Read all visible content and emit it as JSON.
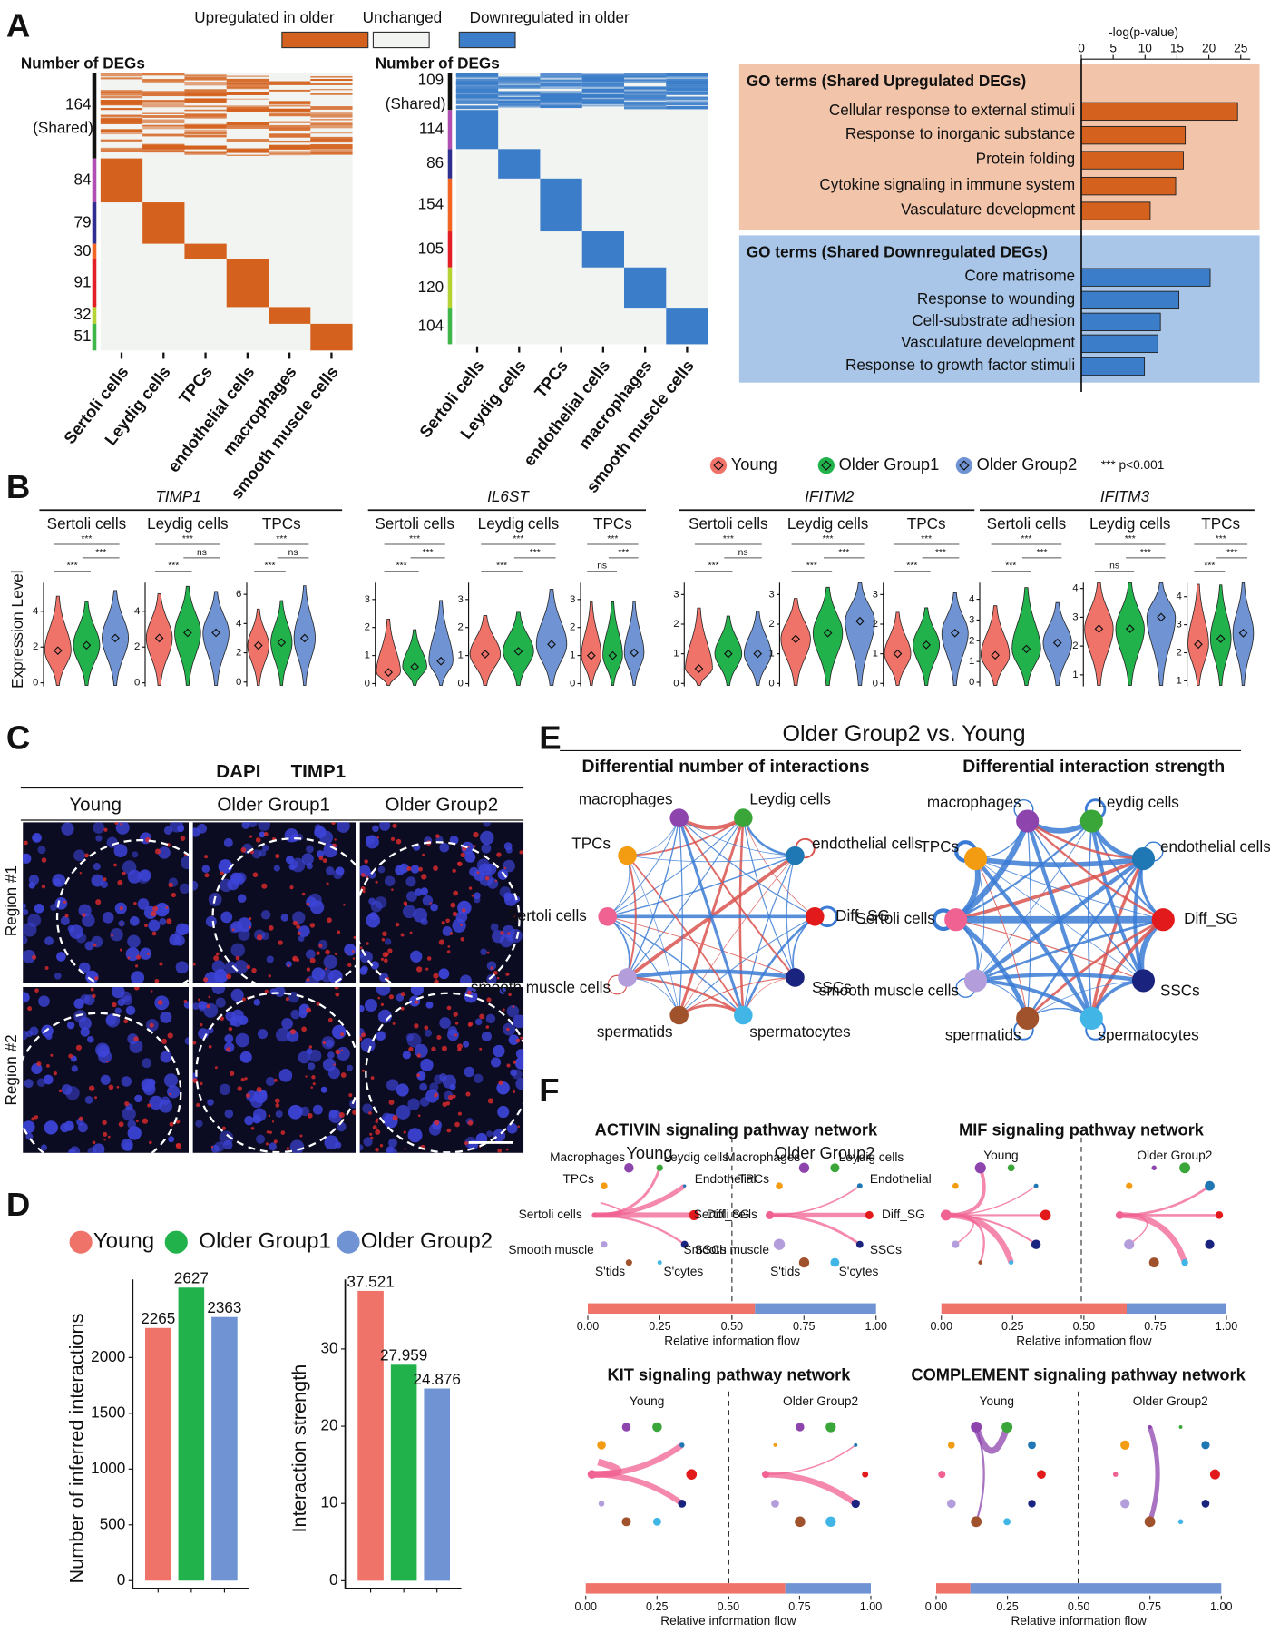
{
  "panel_letters": [
    "A",
    "B",
    "C",
    "D",
    "E",
    "F"
  ],
  "heatmap_legend": [
    {
      "label": "Upregulated in older",
      "color": "#d4621e"
    },
    {
      "label": "Unchanged",
      "color": "#f2f4f2"
    },
    {
      "label": "Downregulated in older",
      "color": "#3b7dc9"
    }
  ],
  "panel_c": {
    "stains": [
      {
        "text": "DAPI",
        "color": "#2e3192"
      },
      {
        "text": "TIMP1",
        "color": "#e0245e"
      }
    ],
    "columns": [
      "Young",
      "Older Group1",
      "Older Group2"
    ],
    "rows": [
      "Region #1",
      "Region #2"
    ]
  },
  "chart_data": [
    {
      "type": "heatmap",
      "title": "Number of DEGs",
      "color": "#d4621e",
      "row_counts": [
        164,
        84,
        79,
        30,
        91,
        32,
        51
      ],
      "shared_label": "(Shared)",
      "group_colors": [
        "#111111",
        "#b04fb1",
        "#2e2f8e",
        "#f26522",
        "#e21f26",
        "#b6d334",
        "#3fb64a"
      ],
      "categories": [
        "Sertoli cells",
        "Leydig cells",
        "TPCs",
        "endothelial cells",
        "macrophages",
        "smooth muscle cells"
      ],
      "category_colors": [
        "#b04fb1",
        "#2e2f8e",
        "#f26522",
        "#e21f26",
        "#b6d334",
        "#3fb64a"
      ]
    },
    {
      "type": "heatmap",
      "title": "Number of DEGs",
      "color": "#3b7dc9",
      "row_counts": [
        109,
        114,
        86,
        154,
        105,
        120,
        104
      ],
      "shared_label": "(Shared)",
      "group_colors": [
        "#111111",
        "#b04fb1",
        "#2e2f8e",
        "#f26522",
        "#e21f26",
        "#b6d334",
        "#3fb64a"
      ],
      "categories": [
        "Sertoli cells",
        "Leydig cells",
        "TPCs",
        "endothelial cells",
        "macrophages",
        "smooth muscle cells"
      ],
      "category_colors": [
        "#b04fb1",
        "#2e2f8e",
        "#f26522",
        "#e21f26",
        "#b6d334",
        "#3fb64a"
      ]
    },
    {
      "type": "barh",
      "axis_title": "-log(p-value)",
      "xlim": [
        0,
        26.5
      ],
      "xticks": [
        0,
        5,
        10,
        15,
        20,
        25
      ],
      "groups": [
        {
          "title": "GO terms (Shared Upregulated DEGs)",
          "color": "#d4621e",
          "background": "#f2c4aa",
          "categories": [
            "Cellular response to external stimuli",
            "Response to inorganic substance",
            "Protein folding",
            "Cytokine signaling in immune system",
            "Vasculature development"
          ],
          "values": [
            24.5,
            16.3,
            16,
            14.8,
            10.8
          ]
        },
        {
          "title": "GO terms (Shared Downregulated DEGs)",
          "color": "#3b7dc9",
          "background": "#a9c6e8",
          "categories": [
            "Core matrisome",
            "Response to wounding",
            "Cell-substrate adhesion",
            "Vasculature development",
            "Response to growth factor stimuli"
          ],
          "values": [
            20.2,
            15.3,
            12.4,
            12,
            9.9
          ]
        }
      ]
    },
    {
      "type": "violin",
      "ylabel": "Expression Level",
      "note": "*** p<0.001",
      "series": [
        {
          "name": "Young",
          "color": "#f0736a"
        },
        {
          "name": "Older Group1",
          "color": "#22b24c"
        },
        {
          "name": "Older Group2",
          "color": "#6f93d3"
        }
      ],
      "genes": [
        {
          "name": "TIMP1",
          "panels": [
            {
              "cell": "Sertoli cells",
              "ylim": [
                -0.2,
                5.6
              ],
              "yticks": [
                0,
                2,
                4
              ],
              "medians": [
                1.8,
                2.1,
                2.5
              ],
              "significance": [
                "***",
                "***",
                "***"
              ]
            },
            {
              "cell": "Leydig cells",
              "ylim": [
                -0.2,
                5.6
              ],
              "yticks": [
                0,
                2,
                4
              ],
              "medians": [
                2.5,
                2.8,
                2.8
              ],
              "significance": [
                "***",
                "ns",
                "***"
              ]
            },
            {
              "cell": "TPCs",
              "ylim": [
                -0.3,
                6.8
              ],
              "yticks": [
                0,
                2,
                4,
                6
              ],
              "medians": [
                2.5,
                2.7,
                3
              ],
              "significance": [
                "***",
                "ns",
                "***"
              ]
            }
          ]
        },
        {
          "name": "IL6ST",
          "panels": [
            {
              "cell": "Sertoli cells",
              "ylim": [
                -0.1,
                3.6
              ],
              "yticks": [
                0,
                1,
                2,
                3
              ],
              "medians": [
                0.4,
                0.6,
                0.8
              ],
              "significance": [
                "***",
                "***",
                "***"
              ]
            },
            {
              "cell": "Leydig cells",
              "ylim": [
                -0.1,
                3.6
              ],
              "yticks": [
                0,
                1,
                2,
                3
              ],
              "medians": [
                1.05,
                1.15,
                1.4
              ],
              "significance": [
                "***",
                "***",
                "***"
              ]
            },
            {
              "cell": "TPCs",
              "ylim": [
                -0.1,
                3.6
              ],
              "yticks": [
                0,
                1,
                2,
                3
              ],
              "medians": [
                1,
                1,
                1.1
              ],
              "significance": [
                "***",
                "***",
                "ns"
              ]
            }
          ]
        },
        {
          "name": "IFITM2",
          "panels": [
            {
              "cell": "Sertoli cells",
              "ylim": [
                -0.1,
                3.4
              ],
              "yticks": [
                0,
                1,
                2,
                3
              ],
              "medians": [
                0.5,
                1,
                1
              ],
              "significance": [
                "***",
                "ns",
                "***"
              ]
            },
            {
              "cell": "Leydig cells",
              "ylim": [
                -0.1,
                3.4
              ],
              "yticks": [
                0,
                1,
                2,
                3
              ],
              "medians": [
                1.5,
                1.7,
                2.1
              ],
              "significance": [
                "***",
                "***",
                "***"
              ]
            },
            {
              "cell": "TPCs",
              "ylim": [
                -0.1,
                3.4
              ],
              "yticks": [
                0,
                1,
                2,
                3
              ],
              "medians": [
                1,
                1.3,
                1.7
              ],
              "significance": [
                "***",
                "***",
                "***"
              ]
            }
          ]
        },
        {
          "name": "IFITM3",
          "panels": [
            {
              "cell": "Sertoli cells",
              "ylim": [
                -0.2,
                4.8
              ],
              "yticks": [
                0,
                1,
                2,
                3,
                4
              ],
              "medians": [
                1.3,
                1.6,
                1.9
              ],
              "significance": [
                "***",
                "***",
                "***"
              ]
            },
            {
              "cell": "Leydig cells",
              "ylim": [
                0.6,
                4.2
              ],
              "yticks": [
                1,
                2,
                3,
                4
              ],
              "medians": [
                2.6,
                2.6,
                3
              ],
              "significance": [
                "***",
                "***",
                "ns"
              ]
            },
            {
              "cell": "TPCs",
              "ylim": [
                0.8,
                4.5
              ],
              "yticks": [
                1,
                2,
                3,
                4
              ],
              "medians": [
                2.3,
                2.5,
                2.7
              ],
              "significance": [
                "***",
                "***",
                "***"
              ]
            }
          ]
        }
      ]
    },
    {
      "type": "bar",
      "legend": [
        {
          "name": "Young",
          "color": "#f0736a"
        },
        {
          "name": "Older Group1",
          "color": "#22b24c"
        },
        {
          "name": "Older Group2",
          "color": "#6f93d3"
        }
      ],
      "ylabel": "Number of inferred interactions",
      "values": [
        2265,
        2627,
        2363
      ],
      "ylim": [
        -70,
        2700
      ],
      "yticks": [
        0,
        500,
        1000,
        1500,
        2000
      ]
    },
    {
      "type": "bar",
      "ylabel": "Interaction strength",
      "values": [
        37.521,
        27.959,
        24.876
      ],
      "ylim": [
        -1,
        39
      ],
      "yticks": [
        0,
        10,
        20,
        30
      ]
    },
    {
      "type": "network",
      "title": "Older Group2 vs. Young",
      "increase_color": "#d9534f",
      "decrease_color": "#3a7bd5",
      "panels": [
        "Differential number of interactions",
        "Differential interaction strength"
      ],
      "nodes": [
        {
          "label": "Leydig cells",
          "color": "#3aa63a"
        },
        {
          "label": "endothelial cells",
          "color": "#1f78b4"
        },
        {
          "label": "Diff_SG",
          "color": "#e31a1c"
        },
        {
          "label": "SSCs",
          "color": "#1a237e"
        },
        {
          "label": "spermatocytes",
          "color": "#41b6e6"
        },
        {
          "label": "spermatids",
          "color": "#a0522d"
        },
        {
          "label": "smooth muscle cells",
          "color": "#b39ddb"
        },
        {
          "label": "Sertoli cells",
          "color": "#f06292"
        },
        {
          "label": "TPCs",
          "color": "#f39c12"
        },
        {
          "label": "macrophages",
          "color": "#8e44ad"
        }
      ]
    },
    {
      "type": "pathway_flow",
      "axis_title": "Relative information flow",
      "groups": [
        "Young",
        "Older Group2"
      ],
      "colors": [
        "#f0736a",
        "#6f93d3"
      ],
      "xlim": [
        0,
        1
      ],
      "xticks": [
        {
          "value": 0,
          "label": "0.00"
        },
        {
          "value": 0.25,
          "label": "0.25"
        },
        {
          "value": 0.5,
          "label": "0.50"
        },
        {
          "value": 0.75,
          "label": "0.75"
        },
        {
          "value": 1,
          "label": "1.00"
        }
      ],
      "node_labels": [
        "Leydig cells",
        "Endothelial",
        "Diff_SG",
        "SSCs",
        "S'cytes",
        "S'tids",
        "Smooth muscle",
        "Sertoli cells",
        "TPCs",
        "Macrophages"
      ],
      "node_colors": [
        "#3aa63a",
        "#1f78b4",
        "#e31a1c",
        "#1a237e",
        "#41b6e6",
        "#a0522d",
        "#b39ddb",
        "#f06292",
        "#f39c12",
        "#8e44ad"
      ],
      "panels": [
        {
          "title": "ACTIVIN signaling pathway network",
          "flow": [
            0.58,
            0.42
          ]
        },
        {
          "title": "MIF signaling pathway network",
          "flow": [
            0.65,
            0.35
          ]
        },
        {
          "title": "KIT signaling pathway network",
          "flow": [
            0.7,
            0.3
          ]
        },
        {
          "title": "COMPLEMENT signaling pathway network",
          "flow": [
            0.12,
            0.88
          ]
        }
      ]
    }
  ]
}
